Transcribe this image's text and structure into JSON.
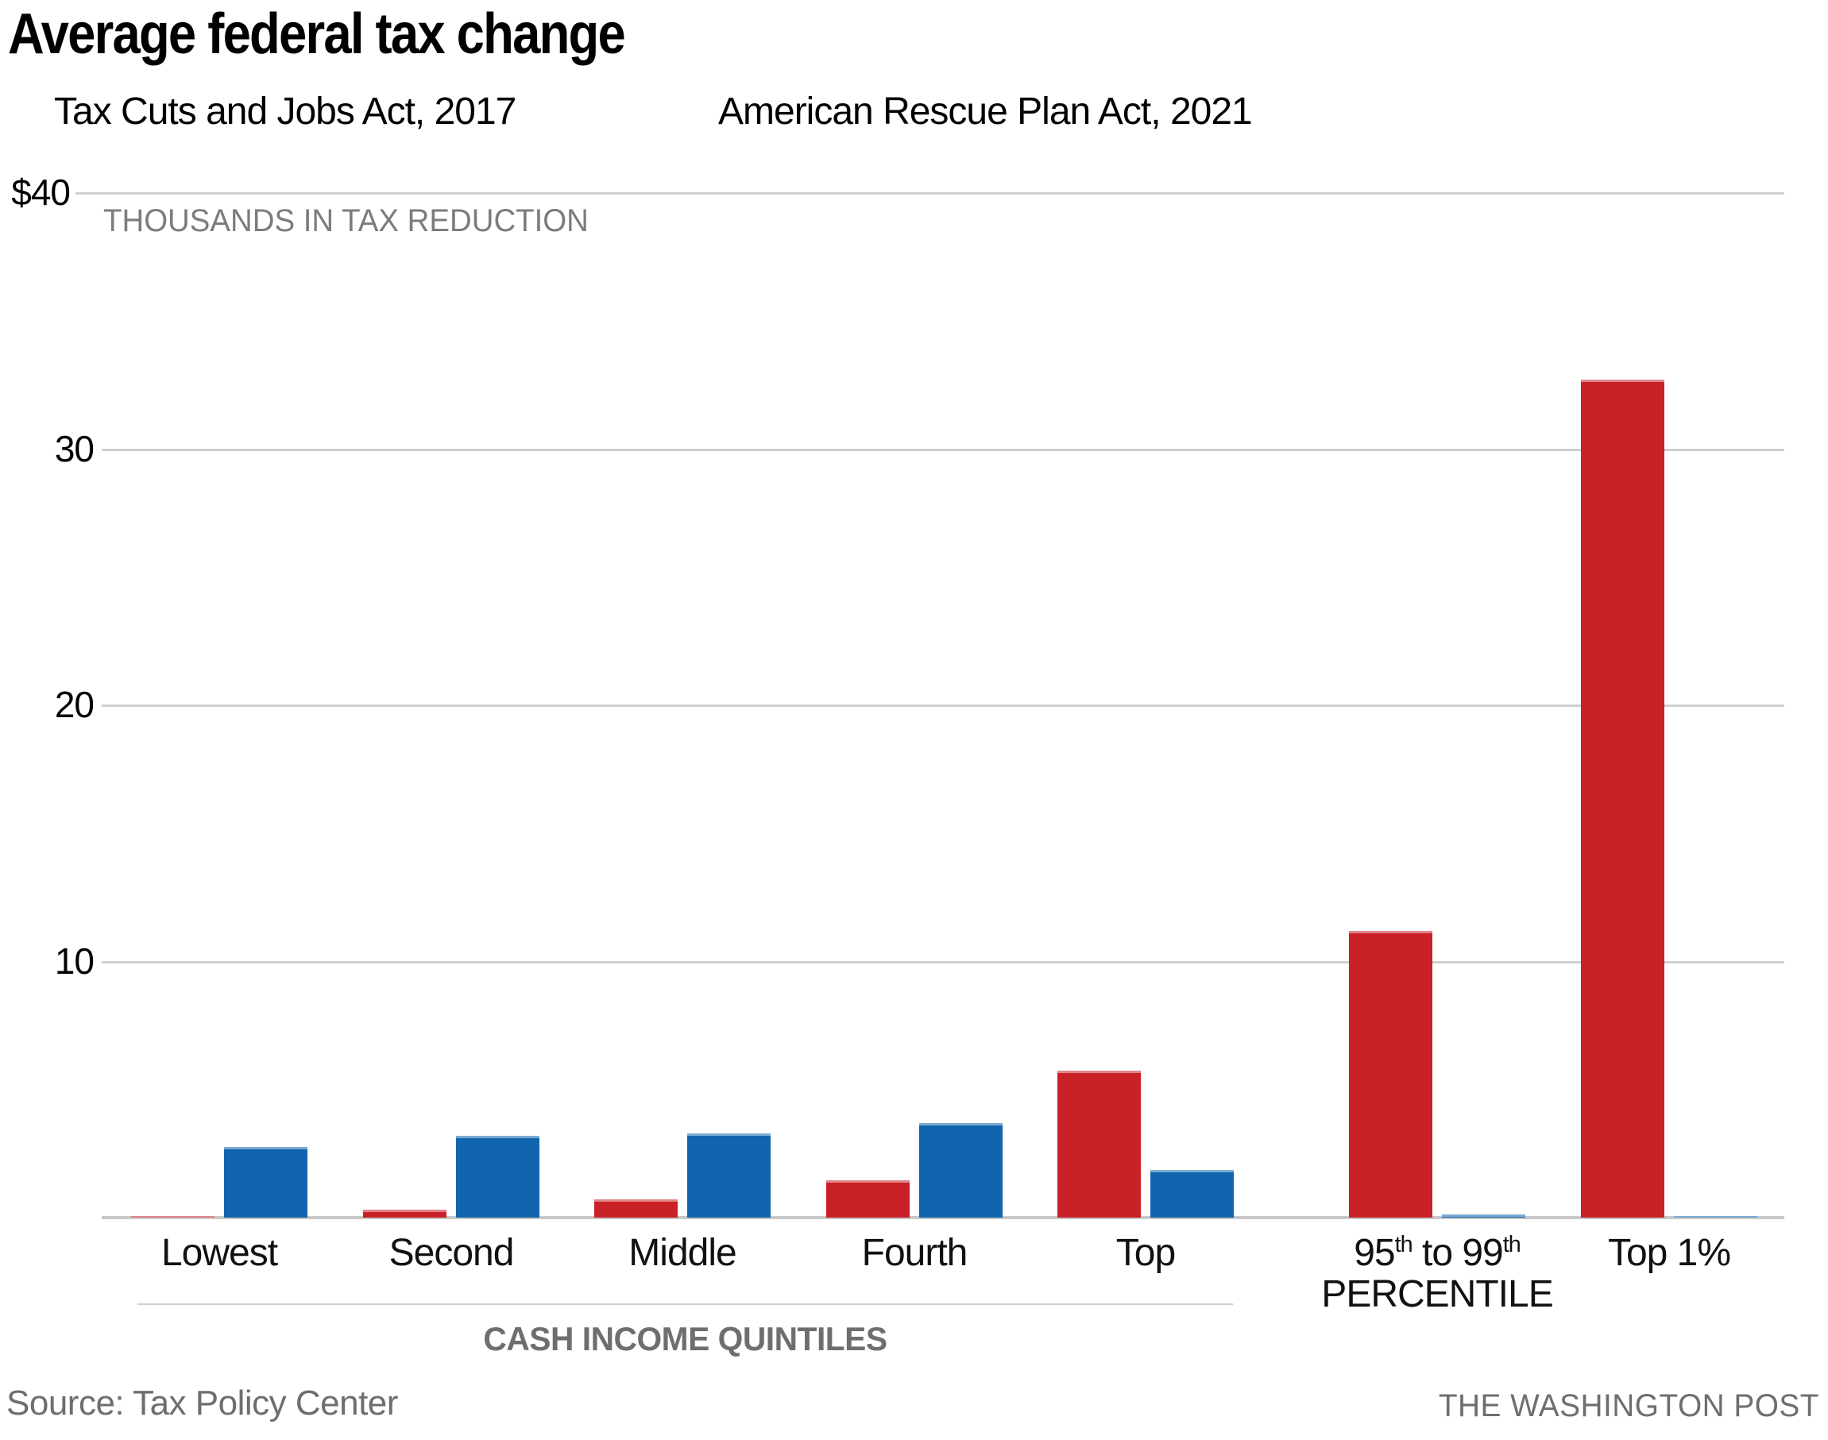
{
  "title": "Average federal tax change",
  "legend": {
    "items": [
      {
        "label": "Tax Cuts and Jobs Act, 2017",
        "color": "#c92127"
      },
      {
        "label": "American Rescue Plan Act, 2021",
        "color": "#1065ae"
      }
    ]
  },
  "chart_data": {
    "type": "bar",
    "title": "Average federal tax change",
    "unit_caption": "THOUSANDS IN TAX REDUCTION",
    "grid": "horizontal",
    "legend_position": "top",
    "ylim": [
      0,
      40
    ],
    "yticks": [
      {
        "label": "$40",
        "value": 40
      },
      {
        "label": "30",
        "value": 30
      },
      {
        "label": "20",
        "value": 20
      },
      {
        "label": "10",
        "value": 10
      }
    ],
    "categories": [
      {
        "label": "Lowest"
      },
      {
        "label": "Second"
      },
      {
        "label": "Middle"
      },
      {
        "label": "Fourth"
      },
      {
        "label": "Top"
      },
      {
        "label": "95th to 99th",
        "label_line2": "PERCENTILE",
        "superscript_th": true
      },
      {
        "label": "Top 1%"
      }
    ],
    "series": [
      {
        "name": "Tax Cuts and Jobs Act, 2017",
        "color": "#c92127",
        "values": [
          0.06,
          0.31,
          0.72,
          1.45,
          5.75,
          11.2,
          32.7
        ]
      },
      {
        "name": "American Rescue Plan Act, 2021",
        "color": "#1065ae",
        "values": [
          2.75,
          3.2,
          3.3,
          3.7,
          1.85,
          0.13,
          0.05
        ]
      }
    ],
    "x_group_label": "CASH INCOME QUINTILES",
    "x_group_span_categories": [
      "Lowest",
      "Second",
      "Middle",
      "Fourth",
      "Top"
    ]
  },
  "footer": {
    "source": "Source: Tax Policy Center",
    "credit": "THE WASHINGTON POST"
  }
}
